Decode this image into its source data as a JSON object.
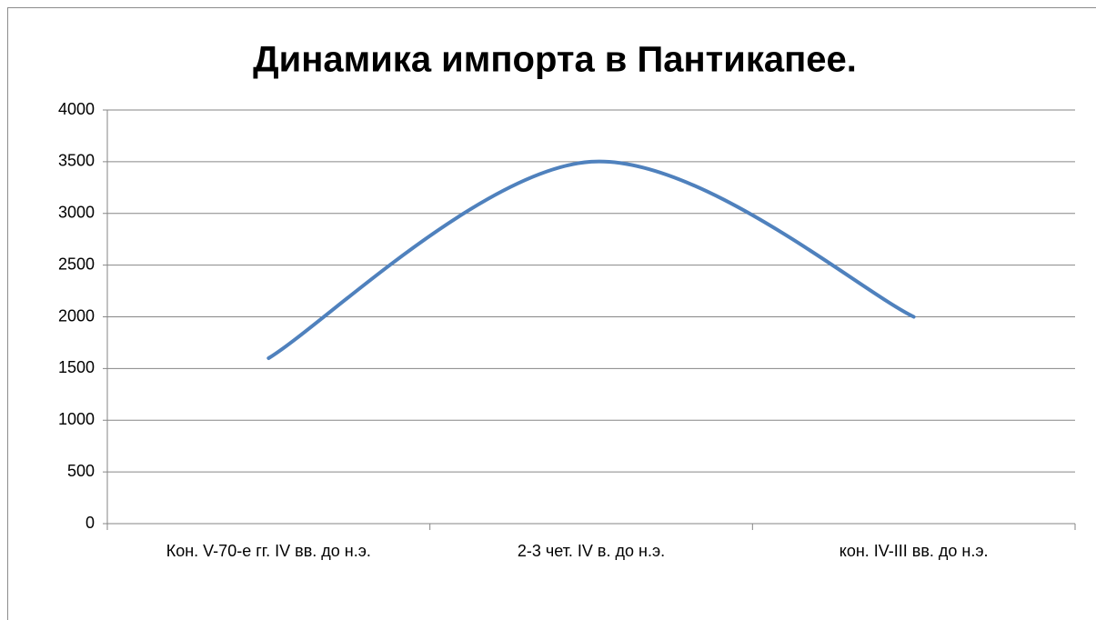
{
  "chart_data": {
    "type": "line",
    "title": "Динамика импорта в Пантикапее.",
    "categories": [
      "Кон. V-70-е гг. IV вв. до н.э.",
      "2-3 чет. IV в. до н.э.",
      "кон. IV-III вв. до н.э."
    ],
    "series": [
      {
        "color": "#4f81bd",
        "values": [
          1600,
          3500,
          2000
        ]
      }
    ],
    "ylim": [
      0,
      4000
    ],
    "yticks": [
      0,
      500,
      1000,
      1500,
      2000,
      2500,
      3000,
      3500,
      4000
    ],
    "grid": true,
    "smooth": true
  }
}
